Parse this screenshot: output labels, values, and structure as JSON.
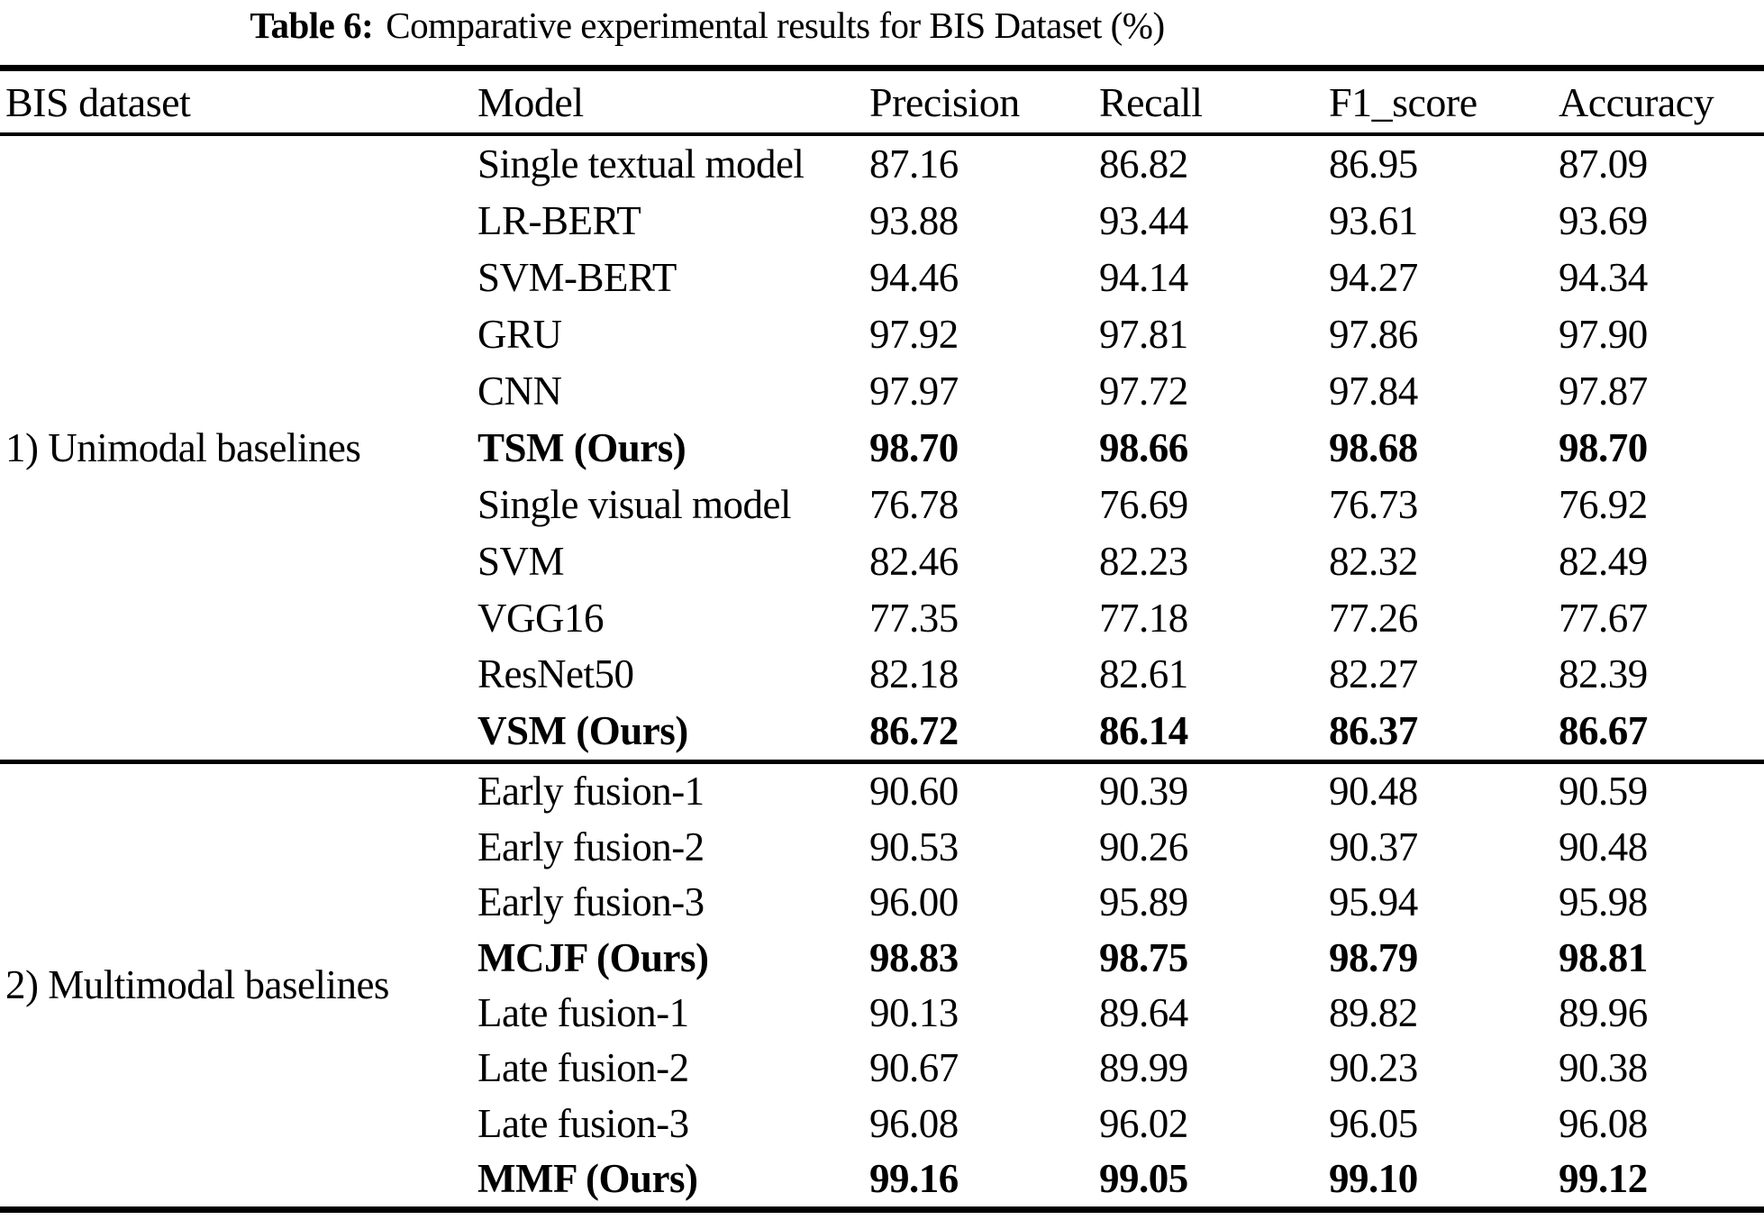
{
  "title": {
    "prefix": "Table 6:",
    "text": "Comparative experimental results for BIS Dataset (%)"
  },
  "colors": {
    "text": "#000000",
    "background": "#ffffff",
    "rule": "#000000"
  },
  "table": {
    "headers": [
      "BIS dataset",
      "Model",
      "Precision",
      "Recall",
      "F1_score",
      "Accuracy"
    ],
    "groups": [
      {
        "label": "1) Unimodal baselines",
        "rows": [
          {
            "model": "Single textual model",
            "bold": false,
            "values": [
              "87.16",
              "86.82",
              "86.95",
              "87.09"
            ]
          },
          {
            "model": "LR-BERT",
            "bold": false,
            "values": [
              "93.88",
              "93.44",
              "93.61",
              "93.69"
            ]
          },
          {
            "model": "SVM-BERT",
            "bold": false,
            "values": [
              "94.46",
              "94.14",
              "94.27",
              "94.34"
            ]
          },
          {
            "model": "GRU",
            "bold": false,
            "values": [
              "97.92",
              "97.81",
              "97.86",
              "97.90"
            ]
          },
          {
            "model": "CNN",
            "bold": false,
            "values": [
              "97.97",
              "97.72",
              "97.84",
              "97.87"
            ]
          },
          {
            "model": "TSM (Ours)",
            "bold": true,
            "values": [
              "98.70",
              "98.66",
              "98.68",
              "98.70"
            ]
          },
          {
            "model": "Single visual model",
            "bold": false,
            "values": [
              "76.78",
              "76.69",
              "76.73",
              "76.92"
            ]
          },
          {
            "model": "SVM",
            "bold": false,
            "values": [
              "82.46",
              "82.23",
              "82.32",
              "82.49"
            ]
          },
          {
            "model": "VGG16",
            "bold": false,
            "values": [
              "77.35",
              "77.18",
              "77.26",
              "77.67"
            ]
          },
          {
            "model": "ResNet50",
            "bold": false,
            "values": [
              "82.18",
              "82.61",
              "82.27",
              "82.39"
            ]
          },
          {
            "model": "VSM (Ours)",
            "bold": true,
            "values": [
              "86.72",
              "86.14",
              "86.37",
              "86.67"
            ]
          }
        ]
      },
      {
        "label": "2) Multimodal baselines",
        "rows": [
          {
            "model": "Early fusion-1",
            "bold": false,
            "values": [
              "90.60",
              "90.39",
              "90.48",
              "90.59"
            ]
          },
          {
            "model": "Early fusion-2",
            "bold": false,
            "values": [
              "90.53",
              "90.26",
              "90.37",
              "90.48"
            ]
          },
          {
            "model": "Early fusion-3",
            "bold": false,
            "values": [
              "96.00",
              "95.89",
              "95.94",
              "95.98"
            ]
          },
          {
            "model": "MCJF (Ours)",
            "bold": true,
            "values": [
              "98.83",
              "98.75",
              "98.79",
              "98.81"
            ]
          },
          {
            "model": "Late fusion-1",
            "bold": false,
            "values": [
              "90.13",
              "89.64",
              "89.82",
              "89.96"
            ]
          },
          {
            "model": "Late fusion-2",
            "bold": false,
            "values": [
              "90.67",
              "89.99",
              "90.23",
              "90.38"
            ]
          },
          {
            "model": "Late fusion-3",
            "bold": false,
            "values": [
              "96.08",
              "96.02",
              "96.05",
              "96.08"
            ]
          },
          {
            "model": "MMF (Ours)",
            "bold": true,
            "values": [
              "99.16",
              "99.05",
              "99.10",
              "99.12"
            ]
          }
        ]
      }
    ]
  }
}
